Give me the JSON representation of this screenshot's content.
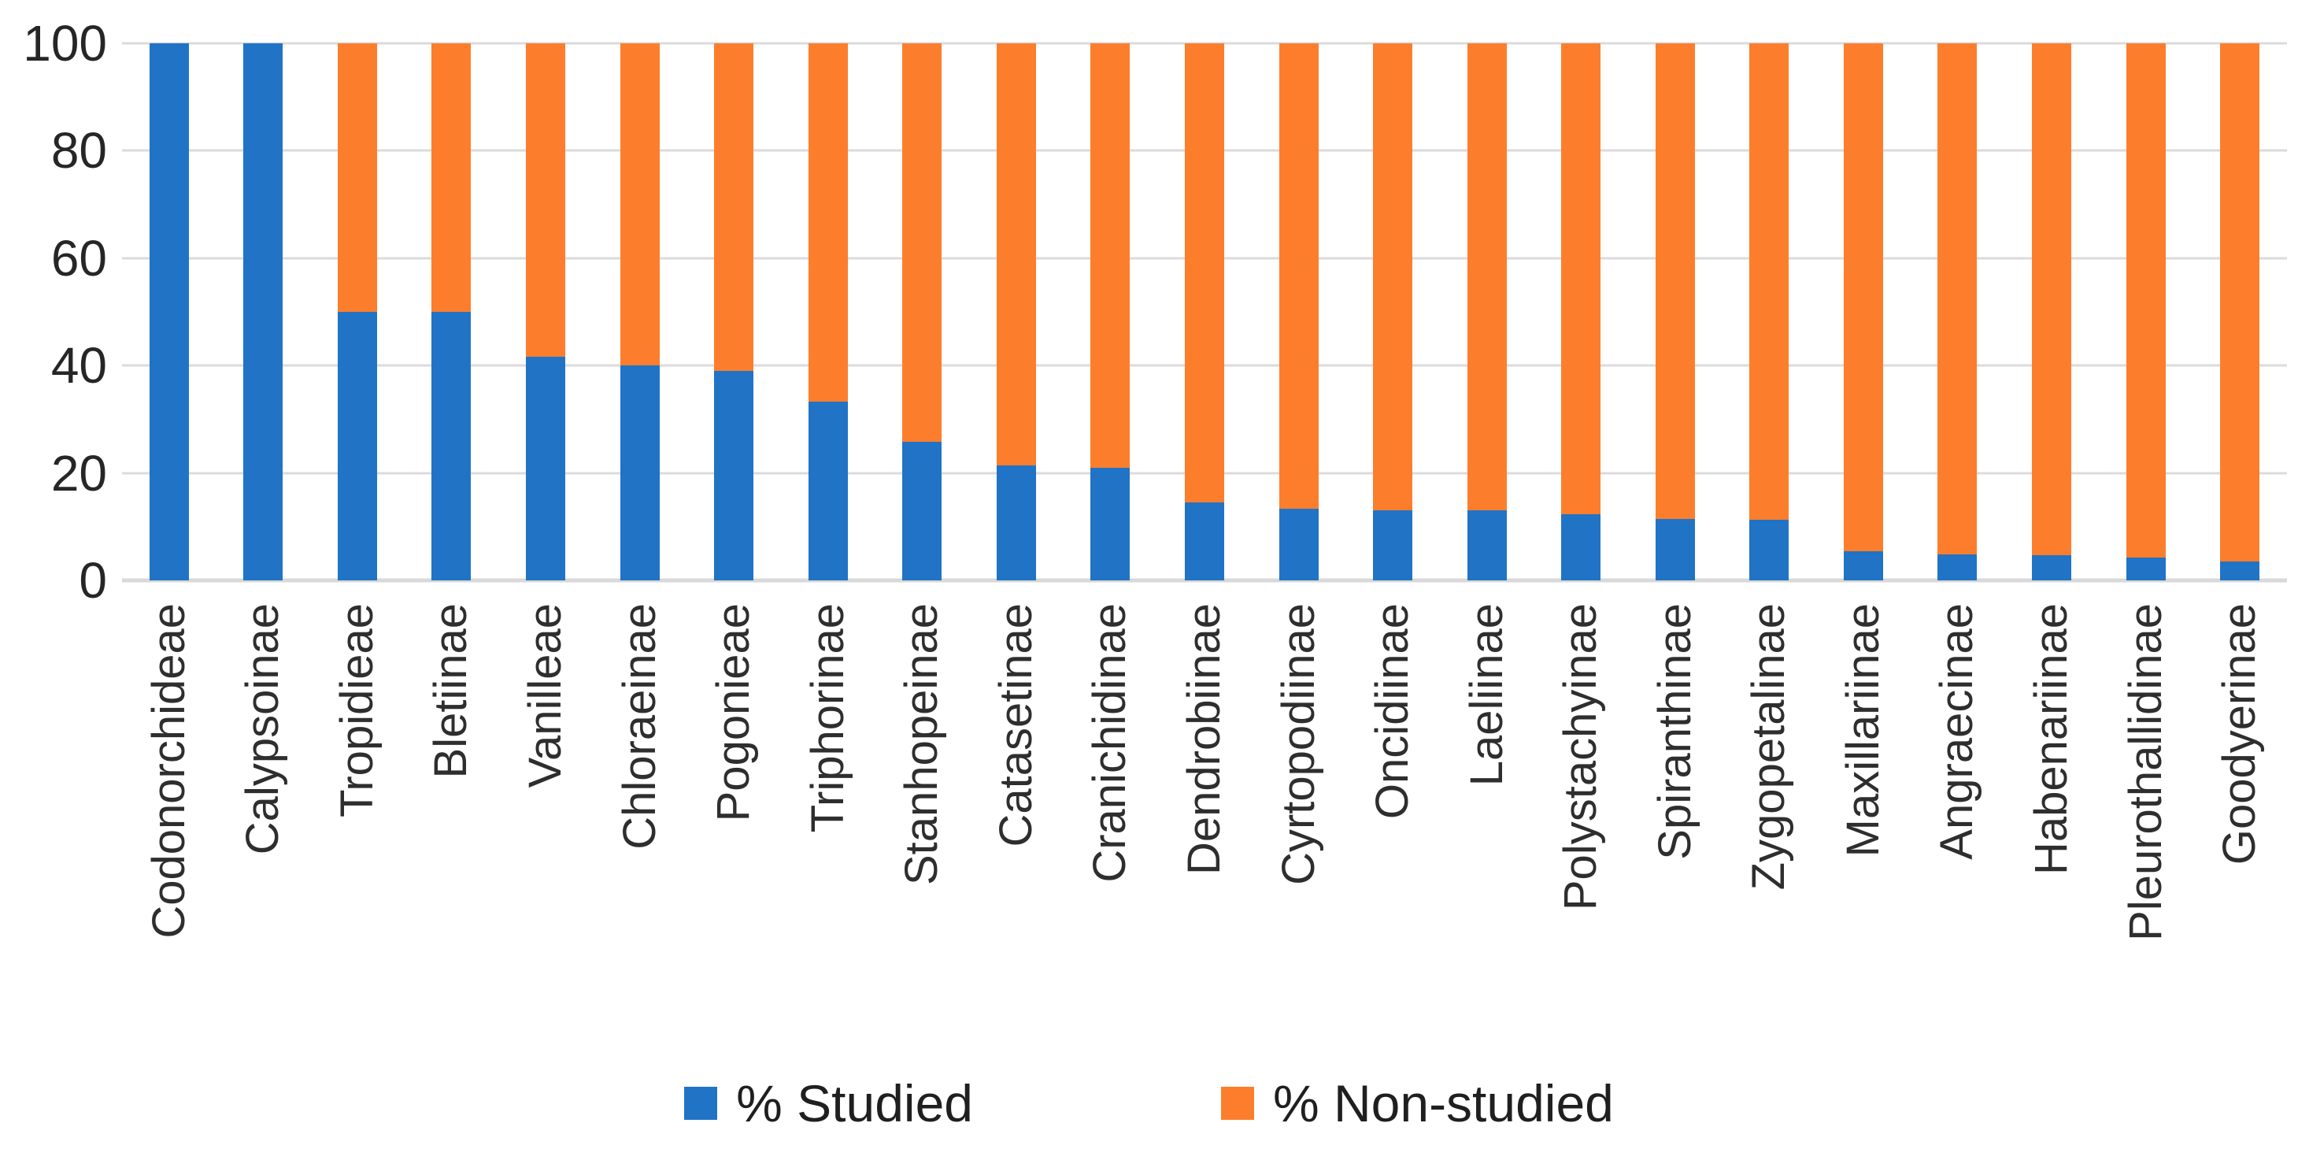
{
  "chart_data": {
    "type": "bar",
    "stacked": true,
    "orientation": "vertical",
    "title": "",
    "xlabel": "",
    "ylabel": "",
    "ylim": [
      0,
      100
    ],
    "yticks": [
      0,
      20,
      40,
      60,
      80,
      100
    ],
    "grid": true,
    "legend_position": "bottom",
    "categories": [
      "Codonorchideae",
      "Calypsoinae",
      "Tropidieae",
      "Bletiinae",
      "Vanilleae",
      "Chloraeinae",
      "Pogonieae",
      "Triphorinae",
      "Stanhopeinae",
      "Catasetinae",
      "Cranichidinae",
      "Dendrobiinae",
      "Cyrtopodiinae",
      "Oncidiinae",
      "Laeliinae",
      "Polystachyinae",
      "Spiranthinae",
      "Zygopetalinae",
      "Maxillariinae",
      "Angraecinae",
      "Habenariinae",
      "Pleurothallidinae",
      "Goodyerinae"
    ],
    "series": [
      {
        "name": "% Studied",
        "color": "#2173C6",
        "values": [
          100,
          100,
          50,
          50,
          41.7,
          40,
          39,
          33.3,
          25.8,
          21.4,
          21,
          14.5,
          13.4,
          13.1,
          13,
          12.3,
          11.5,
          11.3,
          5.4,
          4.8,
          4.7,
          4.3,
          3.5
        ]
      },
      {
        "name": "% Non-studied",
        "color": "#FC7E2D",
        "values": [
          0,
          0,
          50,
          50,
          58.3,
          60,
          61,
          66.7,
          74.2,
          78.6,
          79,
          85.5,
          86.6,
          86.9,
          87,
          87.7,
          88.5,
          88.7,
          94.6,
          95.2,
          95.3,
          95.7,
          96.5
        ]
      }
    ]
  },
  "legend": {
    "studied_label": "% Studied",
    "non_studied_label": "% Non-studied"
  },
  "colors": {
    "studied": "#2173C6",
    "non_studied": "#FC7E2D",
    "gridline": "#DBDBDB",
    "tick_text": "#262626"
  }
}
